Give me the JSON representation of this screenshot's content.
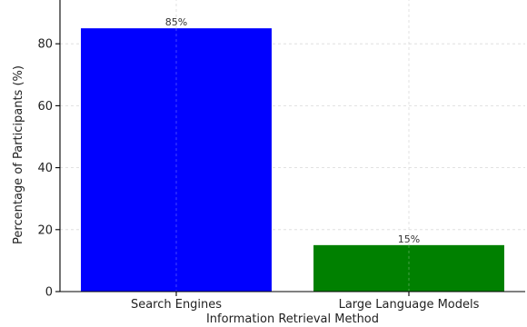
{
  "chart_data": {
    "type": "bar",
    "title": "",
    "xlabel": "Information Retrieval Method",
    "ylabel": "Percentage of Participants (%)",
    "categories": [
      "Search Engines",
      "Large Language Models"
    ],
    "values": [
      85,
      15
    ],
    "data_labels": [
      "85%",
      "15%"
    ],
    "colors": [
      "#0000ff",
      "#008000"
    ],
    "ylim": [
      0,
      100
    ],
    "yticks": [
      0,
      20,
      40,
      60,
      80,
      100
    ],
    "grid": true
  }
}
